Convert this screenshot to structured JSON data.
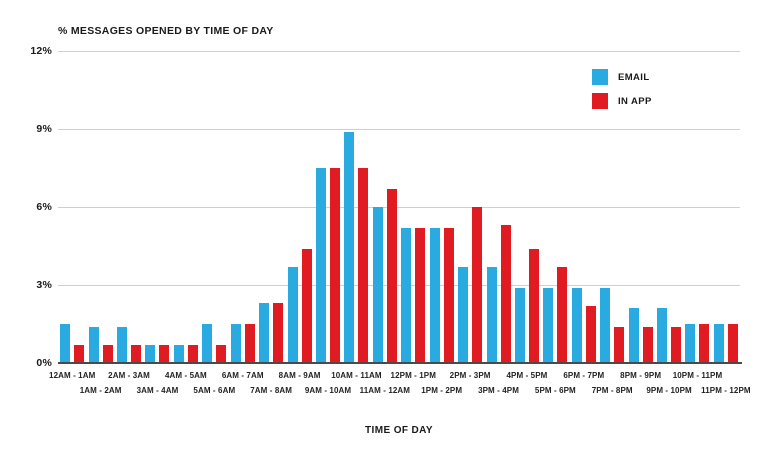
{
  "chart_data": {
    "type": "bar",
    "title": "% MESSAGES OPENED BY TIME OF DAY",
    "xlabel": "TIME OF DAY",
    "ylabel": "",
    "ylim": [
      0,
      12
    ],
    "yticks": [
      "12%",
      "9%",
      "6%",
      "3%",
      "0%"
    ],
    "grid": true,
    "legend_position": "top-right",
    "categories": [
      "12AM - 1AM",
      "1AM - 2AM",
      "2AM - 3AM",
      "3AM - 4AM",
      "4AM - 5AM",
      "5AM - 6AM",
      "6AM - 7AM",
      "7AM - 8AM",
      "8AM - 9AM",
      "9AM - 10AM",
      "10AM - 11AM",
      "11AM - 12AM",
      "12PM - 1PM",
      "1PM - 2PM",
      "2PM - 3PM",
      "3PM - 4PM",
      "4PM - 5PM",
      "5PM - 6PM",
      "6PM - 7PM",
      "7PM - 8PM",
      "8PM - 9PM",
      "9PM - 10PM",
      "10PM - 11PM",
      "11PM - 12PM"
    ],
    "series": [
      {
        "name": "EMAIL",
        "color": "#29abe2",
        "values": [
          1.5,
          1.4,
          1.4,
          0.7,
          0.7,
          1.5,
          1.5,
          2.3,
          3.7,
          7.5,
          8.9,
          6.0,
          5.2,
          5.2,
          3.7,
          3.7,
          2.9,
          2.9,
          2.9,
          2.9,
          2.1,
          2.1,
          1.5,
          1.5
        ]
      },
      {
        "name": "IN APP",
        "color": "#e01b22",
        "values": [
          0.7,
          0.7,
          0.7,
          0.7,
          0.7,
          0.7,
          1.5,
          2.3,
          4.4,
          7.5,
          7.5,
          6.7,
          5.2,
          5.2,
          6.0,
          5.3,
          4.4,
          3.7,
          2.2,
          1.4,
          1.4,
          1.4,
          1.5,
          1.5
        ]
      }
    ]
  },
  "legend": {
    "items": [
      {
        "label": "EMAIL",
        "color": "#29abe2",
        "swatch_name": "email-legend-swatch"
      },
      {
        "label": "IN APP",
        "color": "#e01b22",
        "swatch_name": "in-app-legend-swatch"
      }
    ]
  },
  "colors": {
    "email": "#29abe2",
    "in_app": "#e01b22",
    "gridline": "#cfcfcf",
    "axis_line": "#4a4a4a",
    "text": "#1a1a1a",
    "background": "#ffffff"
  }
}
